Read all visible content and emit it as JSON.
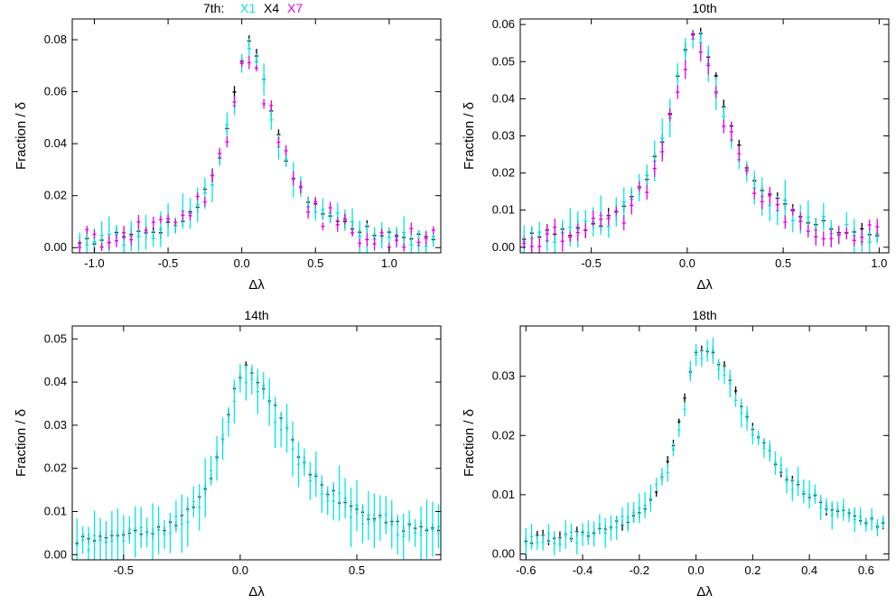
{
  "legend": {
    "prefix": "7th:",
    "entries": [
      {
        "label": "X1",
        "color": "#00e5e5"
      },
      {
        "label": "X4",
        "color": "#000000"
      },
      {
        "label": "X7",
        "color": "#e600e6"
      }
    ]
  },
  "chart_data": [
    {
      "type": "scatter",
      "title": "",
      "xlabel": "Δλ",
      "ylabel": "Fraction / δ",
      "xlim": [
        -1.15,
        1.35
      ],
      "ylim": [
        -0.002,
        0.088
      ],
      "xticks": [
        -1.0,
        -0.5,
        0.0,
        0.5,
        1.0
      ],
      "xticklabels": [
        "-1.0",
        "-0.5",
        "0.0",
        "0.5",
        "1.0"
      ],
      "yticks": [
        0.0,
        0.02,
        0.04,
        0.06,
        0.08
      ],
      "yticklabels": [
        "0.00",
        "0.02",
        "0.04",
        "0.06",
        "0.08"
      ],
      "profile": {
        "center": 0.05,
        "peak": 0.078,
        "wl": 0.18,
        "wr": 0.22,
        "base": 0.001,
        "bin": 0.05,
        "xmin": -1.1,
        "xmax": 1.3,
        "noise": 0.002
      },
      "series": [
        {
          "name": "X4",
          "color": "#000000",
          "err": 0.002,
          "scale": 1.0
        },
        {
          "name": "X1",
          "color": "#00e5e5",
          "err": 0.005,
          "scale": 0.97
        },
        {
          "name": "X7",
          "color": "#e600e6",
          "err": 0.002,
          "scale": 0.93
        }
      ]
    },
    {
      "type": "scatter",
      "title": "10th",
      "xlabel": "Δλ",
      "ylabel": "Fraction / δ",
      "xlim": [
        -0.87,
        1.05
      ],
      "ylim": [
        -0.0015,
        0.0615
      ],
      "xticks": [
        -0.5,
        0.0,
        0.5,
        1.0
      ],
      "xticklabels": [
        "-0.5",
        "0.0",
        "0.5",
        "1.0"
      ],
      "yticks": [
        0.0,
        0.01,
        0.02,
        0.03,
        0.04,
        0.05,
        0.06
      ],
      "yticklabels": [
        "0.00",
        "0.01",
        "0.02",
        "0.03",
        "0.04",
        "0.05",
        "0.06"
      ],
      "profile": {
        "center": 0.03,
        "peak": 0.058,
        "wl": 0.16,
        "wr": 0.22,
        "base": 0.001,
        "bin": 0.04,
        "xmin": -0.85,
        "xmax": 1.02,
        "noise": 0.0015
      },
      "series": [
        {
          "name": "X4",
          "color": "#000000",
          "err": 0.0015,
          "scale": 1.0
        },
        {
          "name": "X1",
          "color": "#00e5e5",
          "err": 0.004,
          "scale": 0.96
        },
        {
          "name": "X7",
          "color": "#e600e6",
          "err": 0.002,
          "scale": 0.94
        }
      ]
    },
    {
      "type": "scatter",
      "title": "14th",
      "xlabel": "Δλ",
      "ylabel": "Fraction / δ",
      "xlim": [
        -0.72,
        0.86
      ],
      "ylim": [
        -0.0012,
        0.053
      ],
      "xticks": [
        -0.5,
        0.0,
        0.5
      ],
      "xticklabels": [
        "-0.5",
        "0.0",
        "0.5"
      ],
      "yticks": [
        0.0,
        0.01,
        0.02,
        0.03,
        0.04,
        0.05
      ],
      "yticklabels": [
        "0.00",
        "0.01",
        "0.02",
        "0.03",
        "0.04",
        "0.05"
      ],
      "profile": {
        "center": 0.02,
        "peak": 0.043,
        "wl": 0.12,
        "wr": 0.24,
        "base": 0.002,
        "bin": 0.025,
        "xmin": -0.7,
        "xmax": 0.85,
        "noise": 0.0012
      },
      "series": [
        {
          "name": "X4",
          "color": "#000000",
          "err": 0.001,
          "scale": 1.0
        },
        {
          "name": "X1",
          "color": "#00e5e5",
          "err": 0.005,
          "scale": 0.97
        }
      ]
    },
    {
      "type": "scatter",
      "title": "18th",
      "xlabel": "Δλ",
      "ylabel": "Fraction / δ",
      "xlim": [
        -0.62,
        0.68
      ],
      "ylim": [
        -0.001,
        0.0385
      ],
      "xticks": [
        -0.6,
        -0.4,
        -0.2,
        0.0,
        0.2,
        0.4,
        0.6
      ],
      "xticklabels": [
        "-0.6",
        "-0.4",
        "-0.2",
        "0.0",
        "0.2",
        "0.4",
        "0.6"
      ],
      "yticks": [
        0.0,
        0.01,
        0.02,
        0.03
      ],
      "yticklabels": [
        "0.00",
        "0.01",
        "0.02",
        "0.03"
      ],
      "profile": {
        "center": 0.02,
        "peak": 0.035,
        "wl": 0.1,
        "wr": 0.22,
        "base": 0.0015,
        "bin": 0.02,
        "xmin": -0.6,
        "xmax": 0.67,
        "noise": 0.0007
      },
      "series": [
        {
          "name": "X4",
          "color": "#000000",
          "err": 0.0008,
          "scale": 1.0
        },
        {
          "name": "X1",
          "color": "#00e5e5",
          "err": 0.0018,
          "scale": 0.98
        }
      ]
    }
  ]
}
